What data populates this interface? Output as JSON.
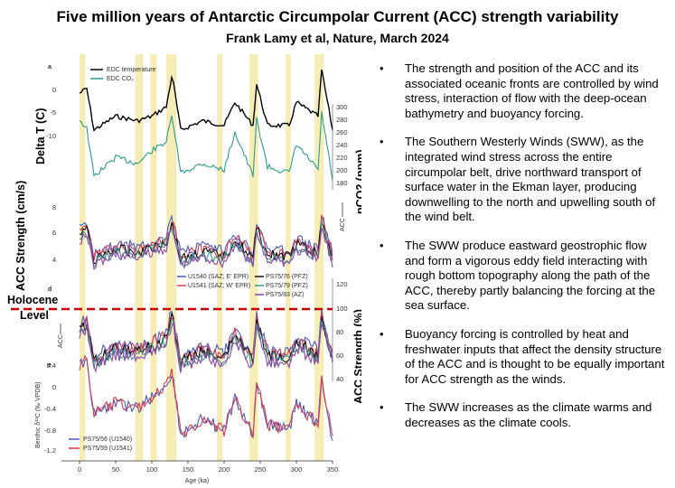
{
  "title": "Five million years of Antarctic Circumpolar Current (ACC) strength variability",
  "subtitle": "Frank Lamy et al, Nature,  March 2024",
  "figure": {
    "overlay_labels": {
      "delta_t": "Delta T (C)",
      "pco2": "pCO2 (ppm)",
      "acc_cms": "ACC Strength (cm/s)",
      "acc_pct": "ACC Strength (%)",
      "holocene_line1": "Holocene",
      "holocene_line2": "Level"
    },
    "panel_letters": [
      "a",
      "d",
      "e"
    ],
    "legend_a": [
      "EDC temperature",
      "EDC CO₂"
    ],
    "legend_d": [
      "U1540 (SAZ; E' EPR)",
      "U1541 (SAZ; W' EPR)",
      "PS75/76 (PFZ)",
      "PS75/79 (PFZ)",
      "PS75/83 (AZ)"
    ],
    "legend_e": [
      "PS75/56 (U1540)",
      "PS75/59 (U1541)"
    ],
    "acc_small_label": "ACC",
    "benthic_label": "Benthic δ¹³C (‰ VPDB)",
    "x_axis_label": "Age (ka)",
    "colors": {
      "temperature": "#000000",
      "co2": "#2a9d8f",
      "u1540": "#4a5bc4",
      "u1541": "#d93a4e",
      "ps7576": "#111111",
      "ps7579": "#3a9a8a",
      "ps7583": "#8e44ad",
      "holocene_line": "#cc0000",
      "interglacial_band": "#f5e9a8"
    },
    "chart_data": [
      {
        "type": "line",
        "panel": "a",
        "series": [
          {
            "name": "EDC temperature",
            "x": [
              0,
              10,
              20,
              50,
              80,
              100,
              120,
              128,
              140,
              170,
              200,
              215,
              240,
              245,
              260,
              290,
              300,
              330,
              335,
              350
            ],
            "y": [
              -1,
              0,
              -9,
              -6,
              -7,
              -6,
              -4,
              3,
              -9,
              -7,
              -8,
              -3,
              -8,
              1,
              -8,
              -8,
              -3,
              -6,
              4,
              -9
            ]
          },
          {
            "name": "EDC CO₂",
            "x": [
              0,
              10,
              20,
              50,
              80,
              100,
              120,
              128,
              140,
              170,
              200,
              215,
              240,
              245,
              260,
              290,
              300,
              330,
              335,
              350
            ],
            "y": [
              280,
              265,
              190,
              220,
              210,
              230,
              245,
              285,
              195,
              210,
              200,
              260,
              190,
              280,
              205,
              195,
              240,
              200,
              290,
              185
            ]
          }
        ],
        "xlim": [
          0,
          350
        ],
        "y_left": {
          "label": "Delta T (C)",
          "ticks": [
            0,
            -5,
            -10
          ]
        },
        "y_right": {
          "label": "pCO2 (ppm)",
          "ticks": [
            300,
            280,
            260,
            240,
            220,
            200,
            180
          ]
        }
      },
      {
        "type": "line",
        "panel": "b",
        "ylabel": "ACC Strength (cm/s)",
        "y_ticks": [
          8,
          6,
          4
        ],
        "xlim": [
          0,
          350
        ]
      },
      {
        "type": "line",
        "panel": "d",
        "ylabel": "ACC Strength (%)",
        "y_ticks": [
          120,
          100,
          80,
          60,
          40
        ],
        "holocene_level": 100,
        "xlim": [
          0,
          350
        ]
      },
      {
        "type": "line",
        "panel": "e",
        "ylabel": "Benthic δ¹³C (‰ VPDB)",
        "y_ticks": [
          0.4,
          0,
          -0.4,
          -0.8,
          -1.2
        ],
        "x_ticks": [
          0,
          50,
          100,
          150,
          200,
          250,
          300,
          350
        ],
        "xlabel": "Age (ka)",
        "xlim": [
          0,
          350
        ]
      }
    ]
  },
  "bullets": [
    "The strength and position of the ACC and its associated oceanic fronts are controlled by wind stress, interaction of flow with the deep-ocean bathymetry and buoyancy forcing.",
    "The Southern Westerly Winds (SWW), as the integrated wind stress across the entire circumpolar belt, drive northward transport of surface water in the Ekman layer, producing downwelling to the north and upwelling south of the wind belt.",
    "The SWW produce eastward geostrophic flow and form a vigorous eddy field interacting with rough bottom topography along the path of the ACC, thereby partly balancing the forcing at the sea surface.",
    "Buoyancy forcing is controlled by heat and freshwater inputs that affect the density structure of the ACC and is thought to be equally important for ACC strength as the winds.",
    "The SWW increases as the climate warms and decreases as  the climate cools."
  ]
}
